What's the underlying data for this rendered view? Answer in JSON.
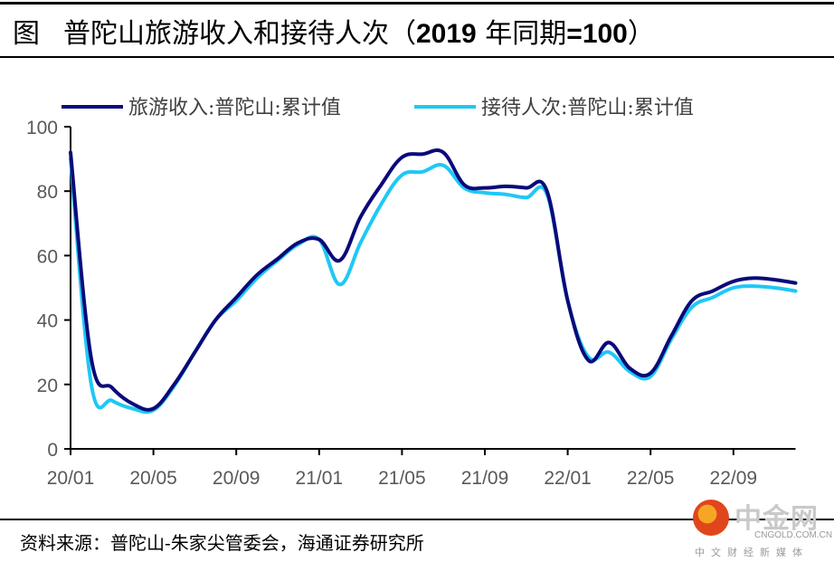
{
  "header": {
    "figure_label": "图",
    "title_cn": "普陀山旅游收入和接待人次（",
    "title_num": "2019",
    "title_cn2": " 年同期",
    "title_num2": "=100",
    "title_end": "）"
  },
  "source": "资料来源：普陀山-朱家尖管委会，海通证券研究所",
  "watermark": {
    "name": "中金网",
    "domain": "CNGOLD.COM.CN",
    "tagline": "中文财经新媒体"
  },
  "colors": {
    "revenue": "#0a0a7a",
    "visitors": "#1ec8f5",
    "axis": "#000000"
  },
  "chart_data": {
    "type": "line",
    "title": "普陀山旅游收入和接待人次（2019年同期=100）",
    "xlabel": "",
    "ylabel": "",
    "ylim": [
      0,
      100
    ],
    "yticks": [
      "0",
      "20",
      "40",
      "60",
      "80",
      "100"
    ],
    "ytick_values": [
      0,
      20,
      40,
      60,
      80,
      100
    ],
    "xtick_labels": [
      "20/01",
      "20/05",
      "20/09",
      "21/01",
      "21/05",
      "21/09",
      "22/01",
      "22/05",
      "22/09"
    ],
    "xtick_index": [
      0,
      4,
      8,
      12,
      16,
      20,
      24,
      28,
      32
    ],
    "grid": false,
    "legend_position": "top",
    "x": [
      "20/01",
      "20/02",
      "20/03",
      "20/04",
      "20/05",
      "20/06",
      "20/07",
      "20/08",
      "20/09",
      "20/10",
      "20/11",
      "20/12",
      "21/01",
      "21/02",
      "21/03",
      "21/04",
      "21/05",
      "21/06",
      "21/07",
      "21/08",
      "21/09",
      "21/10",
      "21/11",
      "21/12",
      "22/01",
      "22/02",
      "22/03",
      "22/04",
      "22/05",
      "22/06",
      "22/07",
      "22/08",
      "22/09",
      "22/10",
      "22/11",
      "22/12"
    ],
    "series": [
      {
        "name": "旅游收入:普陀山:累计值",
        "values": [
          92,
          28,
          19,
          14,
          12.5,
          20,
          30,
          40,
          47,
          54,
          59,
          64,
          65,
          58.5,
          72,
          82,
          90.5,
          91.5,
          92,
          82,
          81,
          81.5,
          81,
          80,
          46,
          27.5,
          33,
          25,
          23.5,
          35,
          46,
          49,
          52,
          53,
          52.5,
          51.5
        ]
      },
      {
        "name": "接待人次:普陀山:累计值",
        "values": [
          90,
          20,
          15,
          12.5,
          12,
          19.5,
          30,
          40,
          46,
          53,
          58.5,
          63.5,
          65,
          51,
          64,
          76,
          85,
          86,
          88,
          81,
          79.5,
          79,
          78,
          79,
          46,
          28.5,
          30,
          24,
          22.5,
          34,
          44,
          47,
          50,
          50.5,
          50,
          49
        ]
      }
    ]
  }
}
